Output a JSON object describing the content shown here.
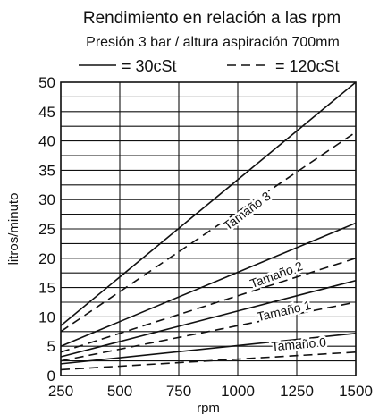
{
  "chart_data": {
    "type": "line",
    "title": "Rendimiento en relación a las rpm",
    "subtitle": "Presión 3 bar / altura aspiración 700mm",
    "legend": [
      {
        "label": "= 30cSt",
        "style": "solid"
      },
      {
        "label": "= 120cSt",
        "style": "dashed"
      }
    ],
    "legend_position": "top-center",
    "xlabel": "rpm",
    "ylabel": "litros/minuto",
    "xlim": [
      250,
      1500
    ],
    "ylim": [
      0,
      50
    ],
    "x_ticks": [
      250,
      500,
      750,
      1000,
      1250,
      1500
    ],
    "y_ticks": [
      0,
      5,
      10,
      15,
      20,
      25,
      30,
      35,
      40,
      45,
      50
    ],
    "grid": true,
    "x": [
      250,
      1500
    ],
    "series": [
      {
        "size_label": "Tamaño 3",
        "viscosity": "30cSt",
        "style": "solid",
        "values": [
          8.5,
          50
        ]
      },
      {
        "size_label": "Tamaño 3",
        "viscosity": "120cSt",
        "style": "dashed",
        "values": [
          7.5,
          41.5
        ]
      },
      {
        "size_label": "Tamaño 2",
        "viscosity": "30cSt",
        "style": "solid",
        "values": [
          5,
          26
        ]
      },
      {
        "size_label": "Tamaño 2",
        "viscosity": "120cSt",
        "style": "dashed",
        "values": [
          4,
          20
        ]
      },
      {
        "size_label": "Tamaño 1",
        "viscosity": "30cSt",
        "style": "solid",
        "values": [
          3.2,
          16.2
        ]
      },
      {
        "size_label": "Tamaño 1",
        "viscosity": "120cSt",
        "style": "dashed",
        "values": [
          2.5,
          12.5
        ]
      },
      {
        "size_label": "Tamaño 0",
        "viscosity": "30cSt",
        "style": "solid",
        "values": [
          2.0,
          7.2
        ]
      },
      {
        "size_label": "Tamaño 0",
        "viscosity": "120cSt",
        "style": "dashed",
        "values": [
          1.0,
          4.0
        ]
      }
    ],
    "annotations": [
      {
        "text": "Tamaño 3",
        "x": 1050,
        "y": 27.5
      },
      {
        "text": "Tamaño 2",
        "x": 1170,
        "y": 16.5
      },
      {
        "text": "Tamaño 1",
        "x": 1200,
        "y": 10.3
      },
      {
        "text": "Tamaño 0",
        "x": 1260,
        "y": 4.6
      }
    ]
  }
}
